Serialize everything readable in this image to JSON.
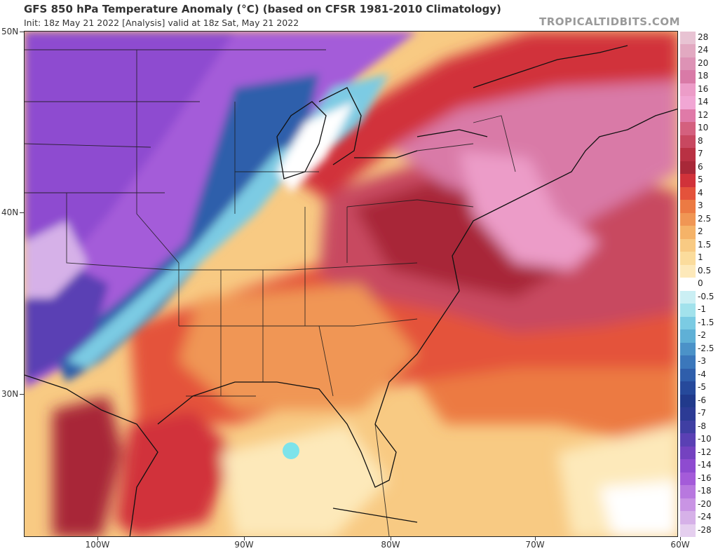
{
  "header": {
    "title": "GFS 850 hPa Temperature Anomaly (°C) (based on CFSR 1981-2010 Climatology)",
    "subtitle": "Init: 18z May 21 2022  [Analysis]  valid at 18z Sat, May 21 2022",
    "brand": "TROPICALTIDBITS.COM"
  },
  "axes": {
    "lat_labels": [
      "50N",
      "40N",
      "30N"
    ],
    "lon_labels": [
      "100W",
      "90W",
      "80W",
      "70W",
      "60W"
    ]
  },
  "legend": {
    "labels": [
      "28",
      "24",
      "20",
      "18",
      "16",
      "14",
      "12",
      "10",
      "8",
      "7",
      "6",
      "5",
      "4",
      "3",
      "2.5",
      "2",
      "1.5",
      "1",
      "0.5",
      "0",
      "-0.5",
      "-1",
      "-1.5",
      "-2",
      "-2.5",
      "-3",
      "-4",
      "-5",
      "-6",
      "-7",
      "-8",
      "-10",
      "-12",
      "-14",
      "-16",
      "-18",
      "-20",
      "-24",
      "-28"
    ],
    "colors": [
      "#e8c3d3",
      "#e2a9c1",
      "#dd92b5",
      "#d97aa7",
      "#ec9cc8",
      "#f1a6d4",
      "#e07aa8",
      "#d4607e",
      "#c84860",
      "#b93143",
      "#a82838",
      "#d1323a",
      "#e4523b",
      "#ec7a43",
      "#f09654",
      "#f5b368",
      "#f8ca83",
      "#fbdc9c",
      "#fde9ba",
      "#ffffff",
      "#cbeff4",
      "#a2e2ec",
      "#7bcbe3",
      "#5fb0d6",
      "#4b92c8",
      "#3b77bb",
      "#2f5eab",
      "#26499b",
      "#213a8c",
      "#2c3b95",
      "#3f3fa3",
      "#5a40b4",
      "#7442c0",
      "#8e4bd0",
      "#a45bd9",
      "#b878df",
      "#c994e4",
      "#d6b1e8",
      "#e5cfef"
    ]
  },
  "map_features": {
    "tropical_low_color": "#7de3ea",
    "coastline_color": "#111111",
    "state_border_color": "#1a1a1a"
  }
}
